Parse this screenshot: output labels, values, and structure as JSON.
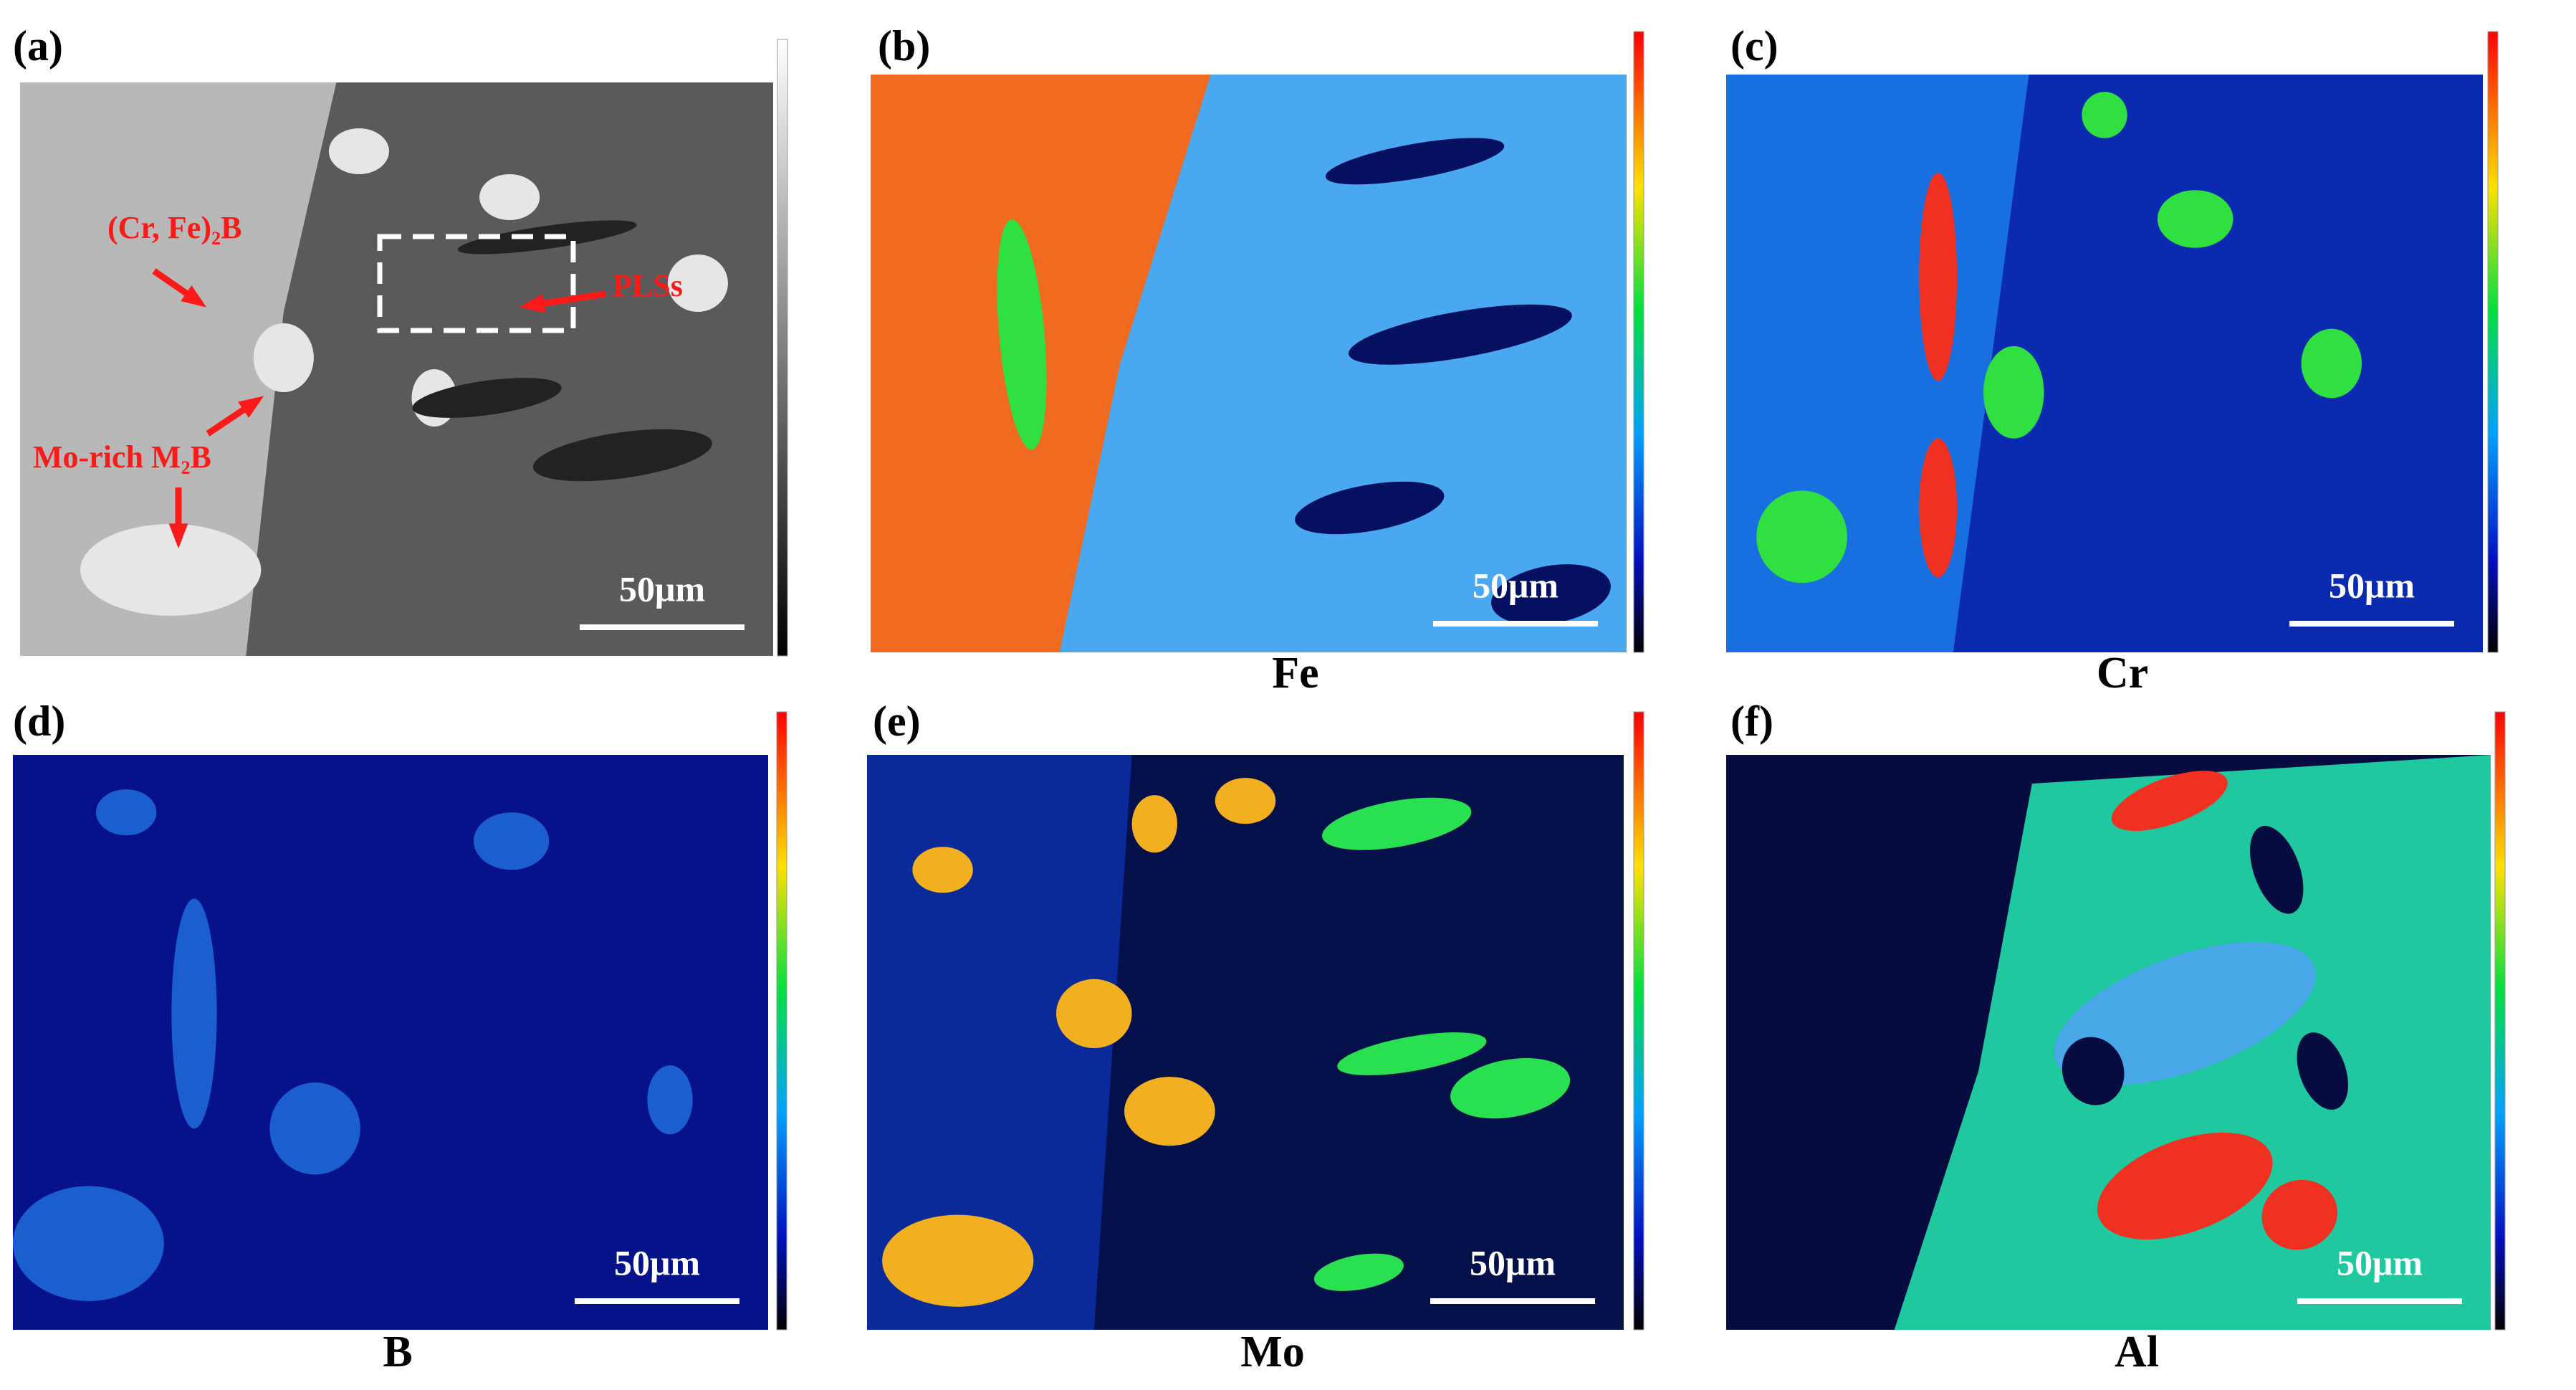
{
  "panels": [
    {
      "label": "(a)",
      "scale_bar": "50μm",
      "annotations": [
        "(Cr, Fe)₂B",
        "PLSs",
        "Mo-rich M₂B"
      ]
    },
    {
      "label": "(b)",
      "scale_bar": "50μm",
      "element": "Fe"
    },
    {
      "label": "(c)",
      "scale_bar": "50μm",
      "element": "Cr"
    },
    {
      "label": "(d)",
      "scale_bar": "50μm",
      "element": "B"
    },
    {
      "label": "(e)",
      "scale_bar": "50μm",
      "element": "Mo"
    },
    {
      "label": "(f)",
      "scale_bar": "50μm",
      "element": "Al"
    }
  ]
}
